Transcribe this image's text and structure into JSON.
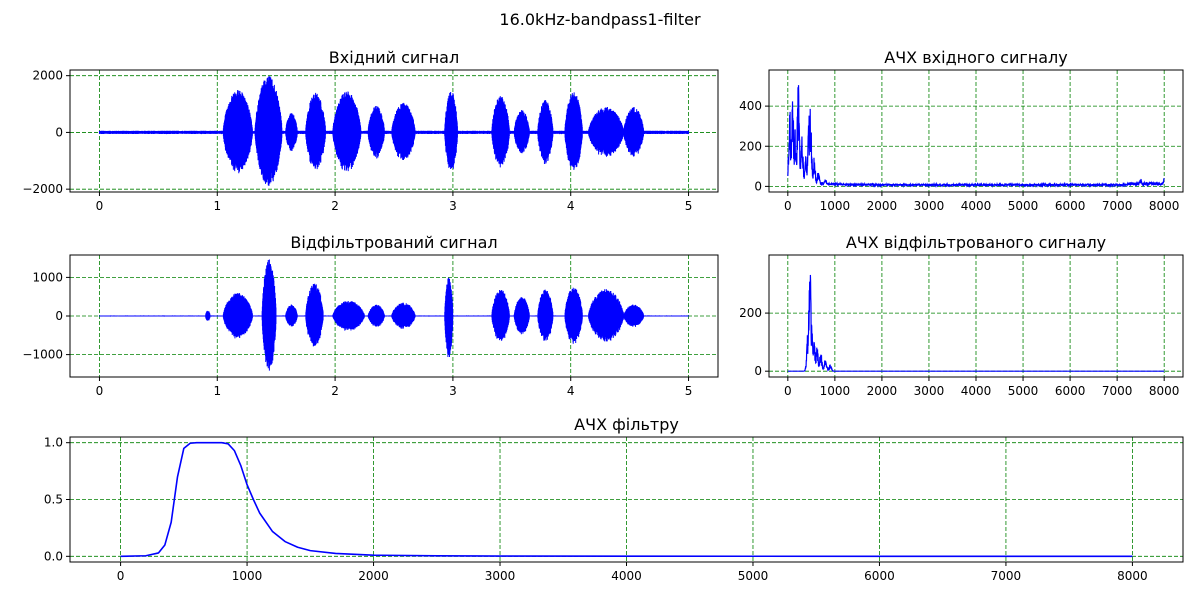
{
  "figure": {
    "suptitle": "16.0kHz-bandpass1-filter"
  },
  "colors": {
    "series": "#0000ff",
    "grid": "#008000",
    "axes": "#000000",
    "background": "#ffffff"
  },
  "chart_data": [
    {
      "id": "input",
      "type": "line",
      "title": "Вхідний сигнал",
      "xlabel": "",
      "ylabel": "",
      "xlim": [
        -0.25,
        5.25
      ],
      "ylim": [
        -2100,
        2200
      ],
      "xticks": [
        0,
        1,
        2,
        3,
        4,
        5
      ],
      "xtick_labels": [
        "0",
        "1",
        "2",
        "3",
        "4",
        "5"
      ],
      "yticks": [
        -2000,
        0,
        2000
      ],
      "ytick_labels": [
        "−2000",
        "0",
        "2000"
      ],
      "grid": true,
      "series": [
        {
          "style": "signal",
          "duration": 5,
          "noise_amplitude": 60,
          "bursts": [
            {
              "start": 1.05,
              "end": 1.3,
              "peak": 1500
            },
            {
              "start": 1.32,
              "end": 1.55,
              "peak": 2000,
              "min": -1900
            },
            {
              "start": 1.58,
              "end": 1.68,
              "peak": 700
            },
            {
              "start": 1.75,
              "end": 1.92,
              "peak": 1400
            },
            {
              "start": 1.98,
              "end": 2.22,
              "peak": 1450
            },
            {
              "start": 2.28,
              "end": 2.42,
              "peak": 950
            },
            {
              "start": 2.48,
              "end": 2.68,
              "peak": 1050
            },
            {
              "start": 2.93,
              "end": 3.04,
              "peak": 1500
            },
            {
              "start": 3.33,
              "end": 3.48,
              "peak": 1300
            },
            {
              "start": 3.52,
              "end": 3.65,
              "peak": 800
            },
            {
              "start": 3.72,
              "end": 3.85,
              "peak": 1150
            },
            {
              "start": 3.95,
              "end": 4.1,
              "peak": 1450
            },
            {
              "start": 4.15,
              "end": 4.45,
              "peak": 900
            },
            {
              "start": 4.45,
              "end": 4.62,
              "peak": 900
            }
          ]
        }
      ]
    },
    {
      "id": "input_spectrum",
      "type": "line",
      "title": "АЧХ вхідного сигналу",
      "xlabel": "",
      "ylabel": "",
      "xlim": [
        -400,
        8400
      ],
      "ylim": [
        -28,
        580
      ],
      "xticks": [
        0,
        1000,
        2000,
        3000,
        4000,
        5000,
        6000,
        7000,
        8000
      ],
      "xtick_labels": [
        "0",
        "1000",
        "2000",
        "3000",
        "4000",
        "5000",
        "6000",
        "7000",
        "8000"
      ],
      "yticks": [
        0,
        200,
        400
      ],
      "ytick_labels": [
        "0",
        "200",
        "400"
      ],
      "grid": true,
      "series": [
        {
          "style": "spectrum",
          "x_max": 8000,
          "floor": 10,
          "peaks": [
            {
              "f": 40,
              "a": 420
            },
            {
              "f": 100,
              "a": 460
            },
            {
              "f": 160,
              "a": 300
            },
            {
              "f": 220,
              "a": 550
            },
            {
              "f": 300,
              "a": 250
            },
            {
              "f": 380,
              "a": 180
            },
            {
              "f": 450,
              "a": 380
            },
            {
              "f": 480,
              "a": 415
            },
            {
              "f": 560,
              "a": 150
            },
            {
              "f": 650,
              "a": 80
            },
            {
              "f": 800,
              "a": 40
            },
            {
              "f": 7500,
              "a": 40
            },
            {
              "f": 8000,
              "a": 45
            }
          ]
        }
      ]
    },
    {
      "id": "filtered",
      "type": "line",
      "title": "Відфільтрований сигнал",
      "xlabel": "",
      "ylabel": "",
      "xlim": [
        -0.25,
        5.25
      ],
      "ylim": [
        -1580,
        1580
      ],
      "xticks": [
        0,
        1,
        2,
        3,
        4,
        5
      ],
      "xtick_labels": [
        "0",
        "1",
        "2",
        "3",
        "4",
        "5"
      ],
      "yticks": [
        -1000,
        0,
        1000
      ],
      "ytick_labels": [
        "−1000",
        "0",
        "1000"
      ],
      "grid": true,
      "series": [
        {
          "style": "signal",
          "duration": 5,
          "noise_amplitude": 15,
          "bursts": [
            {
              "start": 0.9,
              "end": 0.94,
              "peak": 150
            },
            {
              "start": 1.05,
              "end": 1.3,
              "peak": 600
            },
            {
              "start": 1.38,
              "end": 1.5,
              "peak": 1480,
              "min": -1450
            },
            {
              "start": 1.58,
              "end": 1.68,
              "peak": 300
            },
            {
              "start": 1.75,
              "end": 1.9,
              "peak": 850
            },
            {
              "start": 1.98,
              "end": 2.25,
              "peak": 400
            },
            {
              "start": 2.28,
              "end": 2.42,
              "peak": 300
            },
            {
              "start": 2.48,
              "end": 2.68,
              "peak": 350
            },
            {
              "start": 2.93,
              "end": 3.0,
              "peak": 1000,
              "min": -1100
            },
            {
              "start": 3.33,
              "end": 3.48,
              "peak": 700
            },
            {
              "start": 3.52,
              "end": 3.65,
              "peak": 500
            },
            {
              "start": 3.72,
              "end": 3.85,
              "peak": 700
            },
            {
              "start": 3.95,
              "end": 4.1,
              "peak": 750
            },
            {
              "start": 4.15,
              "end": 4.45,
              "peak": 700
            },
            {
              "start": 4.45,
              "end": 4.62,
              "peak": 300
            }
          ]
        }
      ]
    },
    {
      "id": "filtered_spectrum",
      "type": "line",
      "title": "АЧХ відфільтрованого сигналу",
      "xlabel": "",
      "ylabel": "",
      "xlim": [
        -400,
        8400
      ],
      "ylim": [
        -20,
        400
      ],
      "xticks": [
        0,
        1000,
        2000,
        3000,
        4000,
        5000,
        6000,
        7000,
        8000
      ],
      "xtick_labels": [
        "0",
        "1000",
        "2000",
        "3000",
        "4000",
        "5000",
        "6000",
        "7000",
        "8000"
      ],
      "yticks": [
        0,
        200
      ],
      "ytick_labels": [
        "0",
        "200"
      ],
      "grid": true,
      "series": [
        {
          "style": "spectrum",
          "x_max": 8000,
          "floor": 0,
          "peaks": [
            {
              "f": 470,
              "a": 370
            },
            {
              "f": 430,
              "a": 150
            },
            {
              "f": 510,
              "a": 170
            },
            {
              "f": 560,
              "a": 110
            },
            {
              "f": 620,
              "a": 90
            },
            {
              "f": 700,
              "a": 70
            },
            {
              "f": 800,
              "a": 50
            },
            {
              "f": 900,
              "a": 25
            }
          ]
        }
      ]
    },
    {
      "id": "filter_response",
      "type": "line",
      "title": "АЧХ фільтру",
      "xlabel": "",
      "ylabel": "",
      "xlim": [
        -400,
        8400
      ],
      "ylim": [
        -0.05,
        1.05
      ],
      "xticks": [
        0,
        1000,
        2000,
        3000,
        4000,
        5000,
        6000,
        7000,
        8000
      ],
      "xtick_labels": [
        "0",
        "1000",
        "2000",
        "3000",
        "4000",
        "5000",
        "6000",
        "7000",
        "8000"
      ],
      "yticks": [
        0.0,
        0.5,
        1.0
      ],
      "ytick_labels": [
        "0.0",
        "0.5",
        "1.0"
      ],
      "grid": true,
      "series": [
        {
          "style": "curve",
          "x": [
            0,
            200,
            300,
            350,
            400,
            450,
            500,
            550,
            600,
            700,
            800,
            850,
            900,
            950,
            1000,
            1050,
            1100,
            1200,
            1300,
            1400,
            1500,
            1700,
            2000,
            2500,
            3000,
            4000,
            5000,
            6000,
            7000,
            8000
          ],
          "y": [
            0,
            0.005,
            0.03,
            0.1,
            0.3,
            0.7,
            0.95,
            0.995,
            1.0,
            1.0,
            1.0,
            0.99,
            0.93,
            0.8,
            0.63,
            0.5,
            0.38,
            0.22,
            0.13,
            0.08,
            0.05,
            0.025,
            0.01,
            0.004,
            0.002,
            0.001,
            0.0005,
            0.0003,
            0.0002,
            0.0001
          ]
        }
      ]
    }
  ]
}
